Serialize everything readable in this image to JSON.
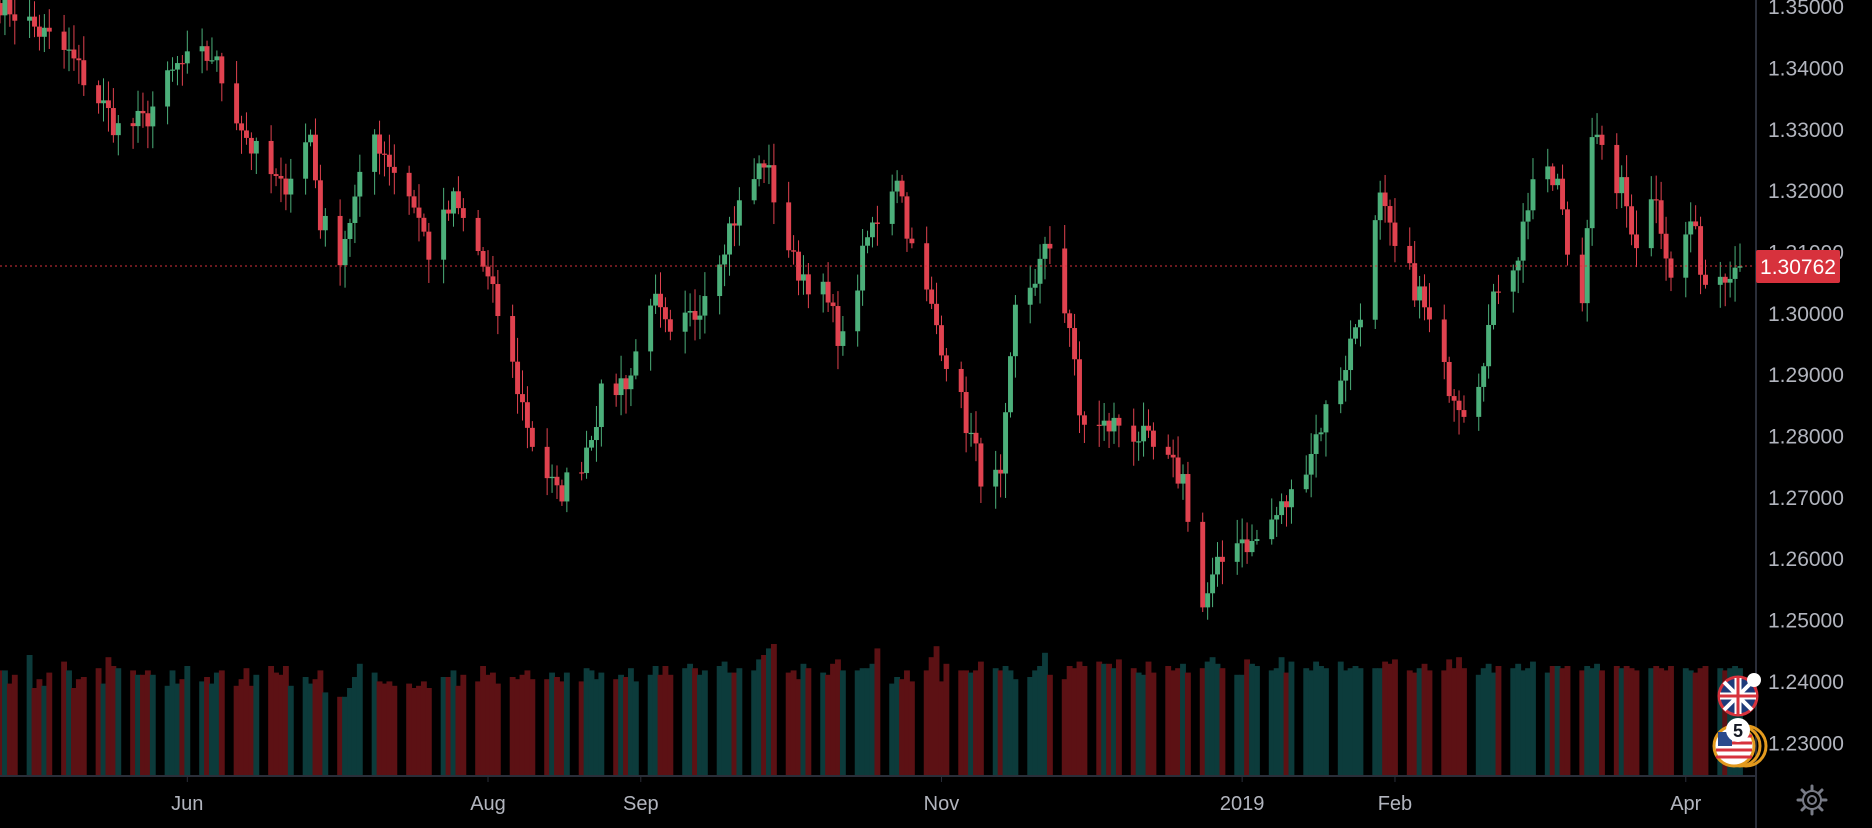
{
  "chart_data": {
    "type": "candlestick",
    "title": "",
    "xlabel": "",
    "ylabel": "",
    "ylim": [
      1.2245,
      1.351
    ],
    "grid": false,
    "y_ticks": [
      "1.35000",
      "1.34000",
      "1.33000",
      "1.32000",
      "1.31000",
      "1.30000",
      "1.29000",
      "1.28000",
      "1.27000",
      "1.26000",
      "1.25000",
      "1.24000",
      "1.23000"
    ],
    "x_ticks": [
      "Jun",
      "Aug",
      "Sep",
      "Nov",
      "2019",
      "Feb",
      "Apr"
    ],
    "x_tick_dates": [
      "2018-06-01",
      "2018-08-01",
      "2018-09-01",
      "2018-11-01",
      "2019-01-01",
      "2019-02-01",
      "2019-04-01"
    ],
    "x_range": [
      "2018-04-24",
      "2019-04-12"
    ],
    "last_price": "1.30762",
    "colors": {
      "up": "#4caf7a",
      "down": "#e0424f",
      "up_volume": "#0c3b3b",
      "down_volume": "#5c1114",
      "price_tag": "#d7323d",
      "background": "#000000"
    },
    "anchors": [
      [
        "2018-04-24",
        1.351
      ],
      [
        "2018-05-08",
        1.342
      ],
      [
        "2018-05-18",
        1.33
      ],
      [
        "2018-05-23",
        1.331
      ],
      [
        "2018-05-30",
        1.34
      ],
      [
        "2018-06-06",
        1.342
      ],
      [
        "2018-06-14",
        1.327
      ],
      [
        "2018-06-20",
        1.32
      ],
      [
        "2018-06-26",
        1.329
      ],
      [
        "2018-06-28",
        1.315
      ],
      [
        "2018-07-02",
        1.31
      ],
      [
        "2018-07-09",
        1.329
      ],
      [
        "2018-07-17",
        1.318
      ],
      [
        "2018-07-20",
        1.31
      ],
      [
        "2018-07-25",
        1.318
      ],
      [
        "2018-07-30",
        1.31
      ],
      [
        "2018-08-03",
        1.3
      ],
      [
        "2018-08-10",
        1.279
      ],
      [
        "2018-08-15",
        1.27
      ],
      [
        "2018-08-20",
        1.276
      ],
      [
        "2018-08-24",
        1.286
      ],
      [
        "2018-08-30",
        1.29
      ],
      [
        "2018-09-03",
        1.303
      ],
      [
        "2018-09-07",
        1.295
      ],
      [
        "2018-09-12",
        1.3
      ],
      [
        "2018-09-19",
        1.314
      ],
      [
        "2018-09-26",
        1.325
      ],
      [
        "2018-10-02",
        1.308
      ],
      [
        "2018-10-08",
        1.303
      ],
      [
        "2018-10-12",
        1.295
      ],
      [
        "2018-10-17",
        1.312
      ],
      [
        "2018-10-23",
        1.323
      ],
      [
        "2018-10-26",
        1.31
      ],
      [
        "2018-10-31",
        1.298
      ],
      [
        "2018-11-05",
        1.285
      ],
      [
        "2018-11-09",
        1.274
      ],
      [
        "2018-11-13",
        1.272
      ],
      [
        "2018-11-16",
        1.3
      ],
      [
        "2018-11-20",
        1.306
      ],
      [
        "2018-11-23",
        1.311
      ],
      [
        "2018-11-27",
        1.298
      ],
      [
        "2018-11-29",
        1.283
      ],
      [
        "2018-12-03",
        1.281
      ],
      [
        "2018-12-07",
        1.282
      ],
      [
        "2018-12-11",
        1.28
      ],
      [
        "2018-12-17",
        1.275
      ],
      [
        "2018-12-20",
        1.273
      ],
      [
        "2018-12-24",
        1.252
      ],
      [
        "2018-12-27",
        1.258
      ],
      [
        "2018-12-31",
        1.264
      ],
      [
        "2019-01-03",
        1.262
      ],
      [
        "2019-01-07",
        1.266
      ],
      [
        "2019-01-11",
        1.27
      ],
      [
        "2019-01-16",
        1.28
      ],
      [
        "2019-01-22",
        1.292
      ],
      [
        "2019-01-25",
        1.301
      ],
      [
        "2019-01-29",
        1.318
      ],
      [
        "2019-02-01",
        1.31
      ],
      [
        "2019-02-06",
        1.303
      ],
      [
        "2019-02-11",
        1.29
      ],
      [
        "2019-02-15",
        1.285
      ],
      [
        "2019-02-18",
        1.29
      ],
      [
        "2019-02-22",
        1.305
      ],
      [
        "2019-02-26",
        1.31
      ],
      [
        "2019-03-01",
        1.322
      ],
      [
        "2019-03-06",
        1.321
      ],
      [
        "2019-03-08",
        1.31
      ],
      [
        "2019-03-11",
        1.302
      ],
      [
        "2019-03-13",
        1.33
      ],
      [
        "2019-03-15",
        1.325
      ],
      [
        "2019-03-19",
        1.32
      ],
      [
        "2019-03-22",
        1.312
      ],
      [
        "2019-03-26",
        1.32
      ],
      [
        "2019-03-29",
        1.305
      ],
      [
        "2019-04-02",
        1.315
      ],
      [
        "2019-04-05",
        1.305
      ],
      [
        "2019-04-10",
        1.308
      ],
      [
        "2019-04-12",
        1.3076
      ]
    ],
    "volume": [
      0.48,
      0.48,
      0.42,
      0.46,
      0.55,
      0.4,
      0.44,
      0.41,
      0.47,
      0.52,
      0.48,
      0.4,
      0.44,
      0.45,
      0.49,
      0.42,
      0.54,
      0.5,
      0.49,
      0.48,
      0.46,
      0.46,
      0.48,
      0.46,
      0.41,
      0.48,
      0.42,
      0.44,
      0.5,
      0.43,
      0.45,
      0.42,
      0.47,
      0.48,
      0.41,
      0.44,
      0.49,
      0.41,
      0.46,
      0.5,
      0.47,
      0.46,
      0.5,
      0.41,
      0.45,
      0.42,
      0.44,
      0.48,
      0.38,
      0.36,
      0.36,
      0.4,
      0.45,
      0.51,
      0.47,
      0.43,
      0.42,
      0.43,
      0.41,
      0.42,
      0.4,
      0.41,
      0.43,
      0.4,
      0.45,
      0.45,
      0.48,
      0.41,
      0.46,
      0.43,
      0.5,
      0.46,
      0.47,
      0.42,
      0.45,
      0.44,
      0.46,
      0.48,
      0.44,
      0.44,
      0.47,
      0.45,
      0.43,
      0.47,
      0.43,
      0.49,
      0.48,
      0.44,
      0.47,
      0.44,
      0.46,
      0.45,
      0.49,
      0.43,
      0.46,
      0.5,
      0.46,
      0.5,
      0.46,
      0.49,
      0.51,
      0.49,
      0.46,
      0.48,
      0.5,
      0.52,
      0.47,
      0.47,
      0.49,
      0.48,
      0.53,
      0.55,
      0.58,
      0.6,
      0.47,
      0.48,
      0.44,
      0.51,
      0.49,
      0.47,
      0.46,
      0.51,
      0.53,
      0.48,
      0.48,
      0.49,
      0.49,
      0.51,
      0.58,
      0.42,
      0.45,
      0.44,
      0.48,
      0.43,
      0.48,
      0.54,
      0.59,
      0.43,
      0.51,
      0.48,
      0.48,
      0.47,
      0.48,
      0.52,
      0.49,
      0.48,
      0.5,
      0.48,
      0.44,
      0.45,
      0.48,
      0.5,
      0.56,
      0.46,
      0.44,
      0.5,
      0.49,
      0.52,
      0.5,
      0.52,
      0.51,
      0.51,
      0.49,
      0.53,
      0.49,
      0.47,
      0.46,
      0.52,
      0.47,
      0.5,
      0.48,
      0.49,
      0.51,
      0.47,
      0.49,
      0.52,
      0.54,
      0.51,
      0.49,
      0.46,
      0.46,
      0.53,
      0.51,
      0.5,
      0.48,
      0.49,
      0.54,
      0.47,
      0.52,
      0.49,
      0.48,
      0.52,
      0.5,
      0.49,
      0.52,
      0.48,
      0.49,
      0.5,
      0.49,
      0.49,
      0.49,
      0.52,
      0.51,
      0.53,
      0.48,
      0.47,
      0.49,
      0.51,
      0.48,
      0.48,
      0.53,
      0.49,
      0.54,
      0.49,
      0.46,
      0.49,
      0.51,
      0.47,
      0.5,
      0.49,
      0.51,
      0.48,
      0.49,
      0.52,
      0.47,
      0.5,
      0.5,
      0.49,
      0.5,
      0.48,
      0.5,
      0.49,
      0.51,
      0.48,
      0.5,
      0.49,
      0.5,
      0.49,
      0.48,
      0.49,
      0.5,
      0.49,
      0.48,
      0.5,
      0.49,
      0.48,
      0.47,
      0.49,
      0.5,
      0.49,
      0.48,
      0.49,
      0.5,
      0.49,
      0.48,
      0.48,
      0.49,
      0.48,
      0.47,
      0.48
    ]
  }
}
